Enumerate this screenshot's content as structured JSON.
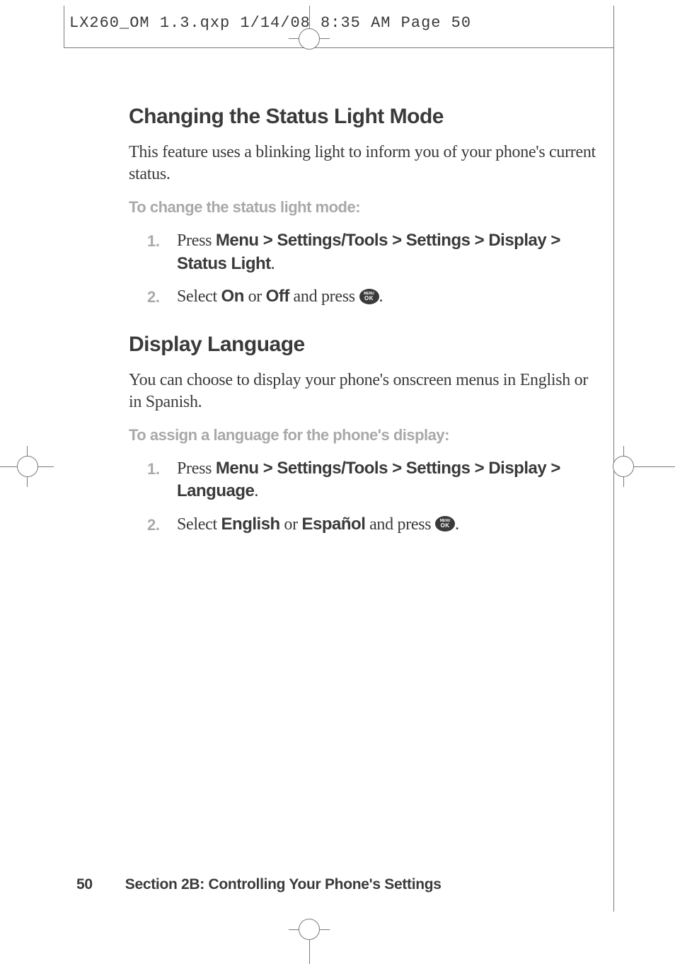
{
  "print_header": "LX260_OM 1.3.qxp  1/14/08  8:35 AM  Page 50",
  "section1": {
    "heading": "Changing the Status Light Mode",
    "intro": "This feature uses a blinking light to inform you of your phone's current status.",
    "subhead": "To change the status light mode:",
    "steps": {
      "s1_pre": "Press ",
      "s1_bold": "Menu > Settings/Tools > Settings > Display > Status Light",
      "s1_post": ".",
      "s2_pre": "Select ",
      "s2_b1": "On",
      "s2_mid": " or ",
      "s2_b2": "Off",
      "s2_post1": " and press ",
      "s2_post2": "."
    }
  },
  "section2": {
    "heading": "Display Language",
    "intro": "You can choose to display your phone's onscreen menus in English or in Spanish.",
    "subhead": "To assign a language for the phone's display:",
    "steps": {
      "s1_pre": "Press ",
      "s1_bold": "Menu > Settings/Tools > Settings > Display > Language",
      "s1_post": ".",
      "s2_pre": "Select ",
      "s2_b1": "English",
      "s2_mid": " or ",
      "s2_b2": "Español",
      "s2_post1": " and press ",
      "s2_post2": "."
    }
  },
  "ok_button": {
    "line1": "MENU",
    "line2": "OK"
  },
  "footer": {
    "page": "50",
    "section": "Section 2B: Controlling Your Phone's Settings"
  },
  "list_numbers": {
    "n1": "1.",
    "n2": "2."
  }
}
